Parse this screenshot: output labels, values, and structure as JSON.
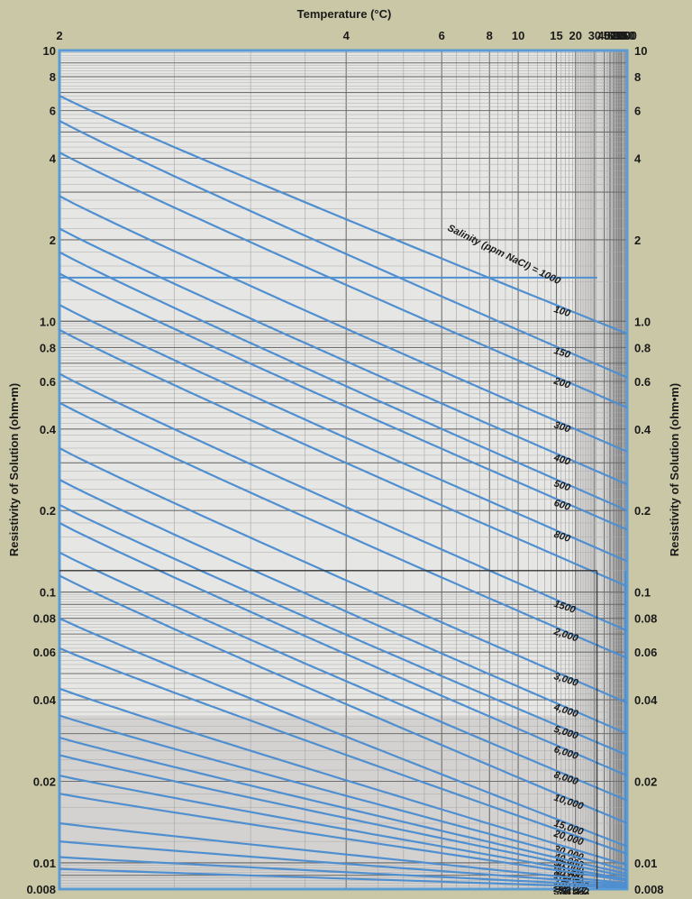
{
  "chart_data": {
    "type": "line",
    "title": "",
    "xlabel": "Temperature (°C)",
    "ylabel": "Resistivity of Solution (ohm•m)",
    "x_scale": "reciprocal",
    "y_scale": "log",
    "xlim": [
      2,
      200
    ],
    "ylim": [
      0.008,
      10
    ],
    "grid": true,
    "x_ticks": [
      "2",
      "4",
      "6",
      "8",
      "10",
      "15",
      "20",
      "30",
      "40",
      "50",
      "60",
      "70",
      "80",
      "90",
      "100",
      "150",
      "200"
    ],
    "y_ticks": [
      "10",
      "8",
      "6",
      "4",
      "2",
      "1.0",
      "0.8",
      "0.6",
      "0.4",
      "0.2",
      "0.1",
      "0.08",
      "0.06",
      "0.04",
      "0.02",
      "0.01",
      "0.008"
    ],
    "curve_title": "Salinity (ppm NaCl) = 1000",
    "series": [
      {
        "label": "100",
        "x": [
          2,
          200
        ],
        "y": [
          6.8,
          0.9
        ],
        "end_label": "100"
      },
      {
        "label": "150",
        "x": [
          2,
          200
        ],
        "y": [
          5.5,
          0.62
        ],
        "end_label": "150"
      },
      {
        "label": "200",
        "x": [
          2,
          200
        ],
        "y": [
          4.2,
          0.48
        ],
        "end_label": "200"
      },
      {
        "label": "300",
        "x": [
          2,
          200
        ],
        "y": [
          2.9,
          0.33
        ],
        "end_label": "300"
      },
      {
        "label": "400",
        "x": [
          2,
          200
        ],
        "y": [
          2.2,
          0.25
        ],
        "end_label": "400"
      },
      {
        "label": "500",
        "x": [
          2,
          200
        ],
        "y": [
          1.8,
          0.2
        ],
        "end_label": "500"
      },
      {
        "label": "600",
        "x": [
          2,
          200
        ],
        "y": [
          1.5,
          0.17
        ],
        "end_label": "600"
      },
      {
        "label": "800",
        "x": [
          2,
          200
        ],
        "y": [
          1.15,
          0.13
        ],
        "end_label": "800"
      },
      {
        "label": "1000",
        "x": [
          2,
          200
        ],
        "y": [
          0.93,
          0.105
        ],
        "end_label": ""
      },
      {
        "label": "1500",
        "x": [
          2,
          200
        ],
        "y": [
          0.64,
          0.072
        ],
        "end_label": "1500"
      },
      {
        "label": "2000",
        "x": [
          2,
          200
        ],
        "y": [
          0.5,
          0.057
        ],
        "end_label": "2,000"
      },
      {
        "label": "3000",
        "x": [
          2,
          200
        ],
        "y": [
          0.34,
          0.039
        ],
        "end_label": "3,000"
      },
      {
        "label": "4000",
        "x": [
          2,
          200
        ],
        "y": [
          0.26,
          0.03
        ],
        "end_label": "4,000"
      },
      {
        "label": "5000",
        "x": [
          2,
          200
        ],
        "y": [
          0.21,
          0.025
        ],
        "end_label": "5,000"
      },
      {
        "label": "6000",
        "x": [
          2,
          200
        ],
        "y": [
          0.18,
          0.021
        ],
        "end_label": "6,000"
      },
      {
        "label": "8000",
        "x": [
          2,
          200
        ],
        "y": [
          0.14,
          0.017
        ],
        "end_label": "8,000"
      },
      {
        "label": "10000",
        "x": [
          2,
          200
        ],
        "y": [
          0.115,
          0.014
        ],
        "end_label": "10,000"
      },
      {
        "label": "15000",
        "x": [
          2,
          200
        ],
        "y": [
          0.08,
          0.0115
        ],
        "end_label": "15,000"
      },
      {
        "label": "20000",
        "x": [
          2,
          200
        ],
        "y": [
          0.062,
          0.0108
        ],
        "end_label": "20,000"
      },
      {
        "label": "30000",
        "x": [
          2,
          200
        ],
        "y": [
          0.044,
          0.0098
        ],
        "end_label": "30,000"
      },
      {
        "label": "40000",
        "x": [
          2,
          200
        ],
        "y": [
          0.035,
          0.0094
        ],
        "end_label": "40,000"
      },
      {
        "label": "50000",
        "x": [
          2,
          200
        ],
        "y": [
          0.029,
          0.0091
        ],
        "end_label": "50,000"
      },
      {
        "label": "60000",
        "x": [
          2,
          200
        ],
        "y": [
          0.025,
          0.0089
        ],
        "end_label": "60,000"
      },
      {
        "label": "80000",
        "x": [
          2,
          200
        ],
        "y": [
          0.021,
          0.0087
        ],
        "end_label": "80,000"
      },
      {
        "label": "100000",
        "x": [
          2,
          200
        ],
        "y": [
          0.018,
          0.0086
        ],
        "end_label": "100,000"
      },
      {
        "label": "150000",
        "x": [
          2,
          200
        ],
        "y": [
          0.014,
          0.0084
        ],
        "end_label": "150,000"
      },
      {
        "label": "200000",
        "x": [
          2,
          200
        ],
        "y": [
          0.012,
          0.0083
        ],
        "end_label": "200,000"
      },
      {
        "label": "250000",
        "x": [
          2,
          200
        ],
        "y": [
          0.0105,
          0.0082
        ],
        "end_label": "250,000"
      },
      {
        "label": "300000",
        "x": [
          2,
          200
        ],
        "y": [
          0.0095,
          0.0081
        ],
        "end_label": "300,000"
      }
    ]
  }
}
